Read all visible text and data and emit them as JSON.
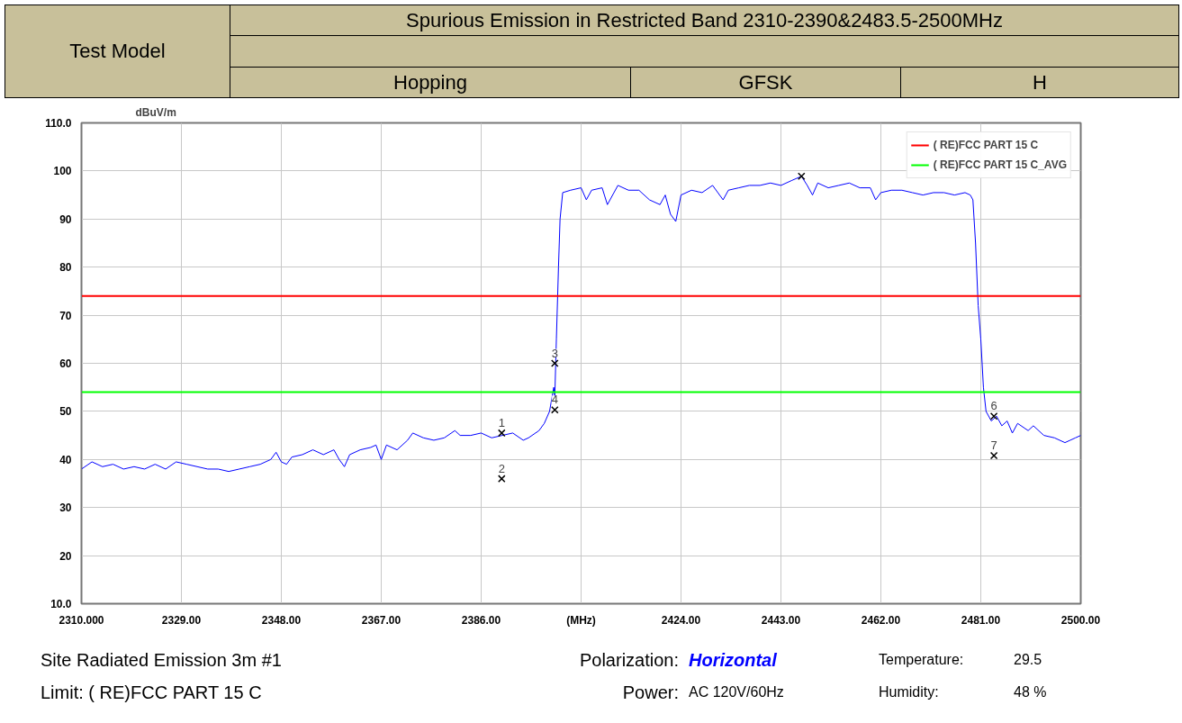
{
  "chart_data": {
    "type": "line",
    "title": "Spurious Emission in Restricted Band 2310-2390&2483.5-2500MHz",
    "ylabel": "dBuV/m",
    "xlim": [
      2310,
      2500
    ],
    "ylim": [
      10,
      110
    ],
    "xticks": [
      {
        "value": 2310,
        "label": "2310.000"
      },
      {
        "value": 2329,
        "label": "2329.00"
      },
      {
        "value": 2348,
        "label": "2348.00"
      },
      {
        "value": 2367,
        "label": "2367.00"
      },
      {
        "value": 2386,
        "label": "2386.00"
      },
      {
        "value": 2405,
        "label": "(MHz)"
      },
      {
        "value": 2424,
        "label": "2424.00"
      },
      {
        "value": 2443,
        "label": "2443.00"
      },
      {
        "value": 2462,
        "label": "2462.00"
      },
      {
        "value": 2481,
        "label": "2481.00"
      },
      {
        "value": 2500,
        "label": "2500.00"
      }
    ],
    "yticks": [
      {
        "value": 10,
        "label": "10.0"
      },
      20,
      30,
      40,
      50,
      60,
      70,
      80,
      90,
      100,
      {
        "value": 110,
        "label": "110.0"
      }
    ],
    "grid": true,
    "legend": "top right",
    "series": [
      {
        "color": "#0000ff",
        "x": [
          2310,
          2312,
          2314,
          2316,
          2318,
          2320,
          2322,
          2324,
          2326,
          2328,
          2330,
          2332,
          2334,
          2336,
          2338,
          2340,
          2342,
          2344,
          2346,
          2347,
          2348,
          2349,
          2350,
          2352,
          2354,
          2356,
          2358,
          2359,
          2360,
          2361,
          2363,
          2365,
          2366,
          2367,
          2368,
          2370,
          2372,
          2373,
          2375,
          2377,
          2379,
          2381,
          2382,
          2384,
          2386,
          2388,
          2390,
          2392,
          2394,
          2395,
          2397,
          2398,
          2399,
          2399.8,
          2400,
          2400.3,
          2400.7,
          2401,
          2401.5,
          2403,
          2405,
          2406,
          2407,
          2409,
          2410,
          2412,
          2414,
          2416,
          2418,
          2420,
          2421,
          2422,
          2423,
          2424,
          2426,
          2428,
          2430,
          2432,
          2433,
          2435,
          2437,
          2439,
          2441,
          2443,
          2445,
          2446.9,
          2448,
          2449,
          2450,
          2452,
          2454,
          2456,
          2458,
          2460,
          2461,
          2462,
          2464,
          2466,
          2468,
          2470,
          2472,
          2474,
          2476,
          2478,
          2479,
          2479.5,
          2480,
          2480.5,
          2481,
          2481.5,
          2482,
          2483,
          2484,
          2485,
          2486,
          2487,
          2488,
          2490,
          2491,
          2493,
          2495,
          2497,
          2498,
          2499,
          2500
        ],
        "values": [
          38,
          39.5,
          38.5,
          39,
          38,
          38.5,
          38,
          39,
          38,
          39.5,
          39,
          38.5,
          38,
          38,
          37.5,
          38,
          38.5,
          39,
          40,
          41.5,
          39.5,
          39,
          40.5,
          41,
          42,
          41,
          42,
          40,
          38.5,
          41,
          42,
          42.5,
          43,
          40,
          43,
          42,
          44,
          45.5,
          44.5,
          44,
          44.5,
          46,
          45,
          45,
          45.5,
          44.5,
          45,
          45.5,
          44,
          44.5,
          46,
          47.5,
          50,
          55,
          53,
          65,
          80,
          90,
          95.5,
          96,
          96.5,
          94,
          96,
          96.5,
          93,
          97,
          96,
          96,
          94,
          93,
          95,
          91,
          89.5,
          95,
          96,
          95.5,
          97,
          94,
          96,
          96.5,
          97,
          97,
          97.5,
          97,
          98,
          98.9,
          97,
          95,
          97.5,
          96.5,
          97,
          97.5,
          96.5,
          96.5,
          94,
          95.5,
          96,
          96,
          95.5,
          95,
          95.5,
          95.5,
          95,
          95.5,
          95,
          94,
          85,
          72,
          65,
          55,
          50,
          48,
          49,
          47,
          48,
          45.5,
          47.5,
          46,
          47,
          45,
          44.5,
          43.5,
          44,
          44.5,
          45
        ]
      },
      {
        "type": "scatter",
        "color": "#000000",
        "marker": "cross",
        "x": [
          2389.9,
          2389.9,
          2400,
          2400,
          2446.9,
          2483.5,
          2483.5
        ],
        "values": [
          45.5,
          36,
          60,
          50.3,
          98.9,
          49,
          40.8
        ]
      }
    ],
    "ref_lines": [
      {
        "axis": "y",
        "value": 74,
        "label": "( RE)FCC PART 15 C",
        "color": "#ff0000"
      },
      {
        "axis": "y",
        "value": 54,
        "label": "( RE)FCC PART 15 C_AVG",
        "color": "#00ff00"
      }
    ],
    "annotations": [
      {
        "text": "1",
        "x": 2389.9,
        "y": 45.5
      },
      {
        "text": "2",
        "x": 2389.9,
        "y": 36
      },
      {
        "text": "3",
        "x": 2400,
        "y": 60
      },
      {
        "text": "4",
        "x": 2400,
        "y": 50.3
      },
      {
        "text": "6",
        "x": 2483.5,
        "y": 49
      },
      {
        "text": "7",
        "x": 2483.5,
        "y": 40.8
      },
      "Test Model",
      "Hopping",
      "GFSK",
      "H",
      "Site  Radiated Emission 3m #1",
      "Polarization:",
      "Horizontal",
      "Temperature:",
      "29.5",
      "Limit: ( RE)FCC PART 15 C",
      "Power:",
      "AC 120V/60Hz",
      "Humidity:",
      "48 %"
    ]
  }
}
